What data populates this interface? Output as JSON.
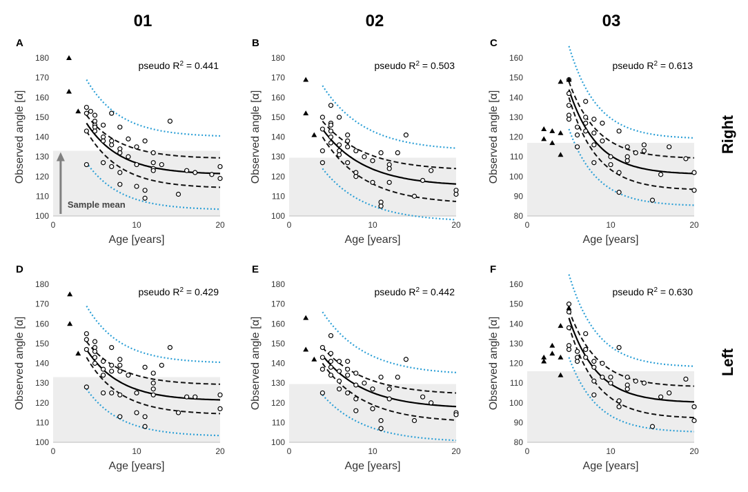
{
  "figure": {
    "column_titles": [
      "01",
      "02",
      "03"
    ],
    "row_titles": [
      "Right",
      "Left"
    ]
  },
  "chart_data": [
    {
      "type": "scatter",
      "panel_label": "A",
      "column": "01",
      "side": "Right",
      "r2_prefix": "pseudo R",
      "r2_sup": "2",
      "r2_value": " = 0.441",
      "xlabel": "Age [years]",
      "ylabel": "Observed angle [α]",
      "xlim": [
        0,
        20
      ],
      "ylim": [
        100,
        180
      ],
      "xticks": [
        0,
        10,
        20
      ],
      "yticks": [
        100,
        110,
        120,
        130,
        140,
        150,
        160,
        170,
        180
      ],
      "sample_mean": 133,
      "annotation": "Sample mean",
      "fit": {
        "asymptote": 121,
        "amplitude": 26,
        "rate": 0.25,
        "x_start": 4,
        "ci_upper_asymptote": 129,
        "ci_lower_asymptote": 114,
        "pi_upper_asymptote": 140,
        "pi_lower_asymptote": 103
      },
      "triangles": [
        [
          1.9,
          180
        ],
        [
          1.9,
          163
        ],
        [
          3,
          153
        ]
      ],
      "circles": [
        [
          4,
          155
        ],
        [
          4,
          152
        ],
        [
          4,
          143
        ],
        [
          4,
          126
        ],
        [
          4.5,
          153
        ],
        [
          5,
          151
        ],
        [
          5,
          148
        ],
        [
          5,
          146
        ],
        [
          5,
          145
        ],
        [
          5,
          143
        ],
        [
          6,
          146
        ],
        [
          6,
          140
        ],
        [
          6,
          138
        ],
        [
          6,
          127
        ],
        [
          7,
          152
        ],
        [
          7,
          138
        ],
        [
          7,
          136
        ],
        [
          7,
          125
        ],
        [
          8,
          145
        ],
        [
          8,
          134
        ],
        [
          8,
          132
        ],
        [
          8,
          122
        ],
        [
          8,
          116
        ],
        [
          9,
          139
        ],
        [
          9,
          130
        ],
        [
          10,
          135
        ],
        [
          10,
          126
        ],
        [
          10,
          115
        ],
        [
          11,
          138
        ],
        [
          11,
          113
        ],
        [
          11,
          109
        ],
        [
          12,
          132
        ],
        [
          12,
          127
        ],
        [
          12,
          124
        ],
        [
          12,
          123
        ],
        [
          13,
          126
        ],
        [
          14,
          148
        ],
        [
          15,
          111
        ],
        [
          16,
          123
        ],
        [
          17,
          122
        ],
        [
          19,
          121
        ],
        [
          20,
          125
        ],
        [
          20,
          119
        ]
      ]
    },
    {
      "type": "scatter",
      "panel_label": "B",
      "column": "02",
      "side": "Right",
      "r2_prefix": "pseudo R",
      "r2_sup": "2",
      "r2_value": " = 0.503",
      "xlabel": "Age [years]",
      "ylabel": "Observed angle [α]",
      "xlim": [
        0,
        20
      ],
      "ylim": [
        100,
        180
      ],
      "xticks": [
        0,
        10,
        20
      ],
      "yticks": [
        100,
        110,
        120,
        130,
        140,
        150,
        160,
        170,
        180
      ],
      "sample_mean": 129.5,
      "fit": {
        "asymptote": 115,
        "amplitude": 29,
        "rate": 0.2,
        "x_start": 4,
        "ci_upper_asymptote": 123,
        "ci_lower_asymptote": 106,
        "pi_upper_asymptote": 133,
        "pi_lower_asymptote": 97
      },
      "triangles": [
        [
          2,
          169
        ],
        [
          2,
          152
        ],
        [
          3,
          141
        ]
      ],
      "circles": [
        [
          4,
          150
        ],
        [
          4,
          144
        ],
        [
          4,
          133
        ],
        [
          4,
          127
        ],
        [
          5,
          156
        ],
        [
          5,
          147
        ],
        [
          5,
          146
        ],
        [
          5,
          143
        ],
        [
          5,
          140
        ],
        [
          5,
          137
        ],
        [
          6,
          150
        ],
        [
          6,
          136
        ],
        [
          6,
          133
        ],
        [
          6,
          131
        ],
        [
          7,
          141
        ],
        [
          7,
          138
        ],
        [
          7,
          135
        ],
        [
          7,
          127
        ],
        [
          8,
          133
        ],
        [
          8,
          122
        ],
        [
          8,
          120
        ],
        [
          9,
          130
        ],
        [
          10,
          128
        ],
        [
          10,
          117
        ],
        [
          11,
          132
        ],
        [
          11,
          107
        ],
        [
          11,
          105
        ],
        [
          12,
          126
        ],
        [
          12,
          124
        ],
        [
          12,
          117
        ],
        [
          13,
          132
        ],
        [
          14,
          141
        ],
        [
          15,
          110
        ],
        [
          16,
          118
        ],
        [
          17,
          123
        ],
        [
          20,
          113
        ],
        [
          20,
          111
        ]
      ]
    },
    {
      "type": "scatter",
      "panel_label": "C",
      "column": "03",
      "side": "Right",
      "r2_prefix": "pseudo R",
      "r2_sup": "2",
      "r2_value": " = 0.613",
      "xlabel": "Age [years]",
      "ylabel": "Observed angle [α]",
      "xlim": [
        0,
        20
      ],
      "ylim": [
        80,
        160
      ],
      "xticks": [
        0,
        10,
        20
      ],
      "yticks": [
        80,
        90,
        100,
        110,
        120,
        130,
        140,
        150,
        160
      ],
      "sample_mean": 117,
      "fit": {
        "asymptote": 101,
        "amplitude": 43,
        "rate": 0.3,
        "x_start": 5,
        "ci_upper_asymptote": 109,
        "ci_lower_asymptote": 93,
        "pi_upper_asymptote": 119,
        "pi_lower_asymptote": 85
      },
      "triangles": [
        [
          2,
          124
        ],
        [
          2,
          119
        ],
        [
          3,
          123
        ],
        [
          3,
          117
        ],
        [
          4,
          148
        ],
        [
          4,
          122
        ],
        [
          4,
          111
        ],
        [
          5,
          149
        ]
      ],
      "circles": [
        [
          5,
          149
        ],
        [
          5,
          142
        ],
        [
          5,
          136
        ],
        [
          5,
          131
        ],
        [
          5,
          129
        ],
        [
          6,
          125
        ],
        [
          6,
          121
        ],
        [
          6,
          115
        ],
        [
          7,
          138
        ],
        [
          7,
          130
        ],
        [
          7,
          127
        ],
        [
          7,
          123
        ],
        [
          8,
          129
        ],
        [
          8,
          122
        ],
        [
          8,
          116
        ],
        [
          8,
          107
        ],
        [
          9,
          127
        ],
        [
          9,
          118
        ],
        [
          10,
          110
        ],
        [
          10,
          106
        ],
        [
          11,
          123
        ],
        [
          11,
          102
        ],
        [
          11,
          92
        ],
        [
          12,
          115
        ],
        [
          12,
          110
        ],
        [
          12,
          108
        ],
        [
          13,
          112
        ],
        [
          14,
          116
        ],
        [
          14,
          113
        ],
        [
          15,
          88
        ],
        [
          16,
          101
        ],
        [
          17,
          115
        ],
        [
          19,
          109
        ],
        [
          20,
          102
        ],
        [
          20,
          93
        ]
      ]
    },
    {
      "type": "scatter",
      "panel_label": "D",
      "column": "01",
      "side": "Left",
      "r2_prefix": "pseudo R",
      "r2_sup": "2",
      "r2_value": " = 0.429",
      "xlabel": "Age [years]",
      "ylabel": "Observed angle [α]",
      "xlim": [
        0,
        20
      ],
      "ylim": [
        100,
        180
      ],
      "xticks": [
        0,
        10,
        20
      ],
      "yticks": [
        100,
        110,
        120,
        130,
        140,
        150,
        160,
        170,
        180
      ],
      "sample_mean": 133,
      "fit": {
        "asymptote": 121,
        "amplitude": 26,
        "rate": 0.25,
        "x_start": 4,
        "ci_upper_asymptote": 129,
        "ci_lower_asymptote": 114,
        "pi_upper_asymptote": 140,
        "pi_lower_asymptote": 103
      },
      "triangles": [
        [
          2,
          175
        ],
        [
          2,
          160
        ],
        [
          3,
          145
        ]
      ],
      "circles": [
        [
          4,
          155
        ],
        [
          4,
          152
        ],
        [
          4,
          147
        ],
        [
          4,
          128
        ],
        [
          5,
          151
        ],
        [
          5,
          148
        ],
        [
          5,
          146
        ],
        [
          5,
          143
        ],
        [
          5,
          140
        ],
        [
          6,
          141
        ],
        [
          6,
          137
        ],
        [
          6,
          134
        ],
        [
          6,
          125
        ],
        [
          7,
          148
        ],
        [
          7,
          139
        ],
        [
          7,
          136
        ],
        [
          7,
          125
        ],
        [
          8,
          142
        ],
        [
          8,
          139
        ],
        [
          8,
          136
        ],
        [
          8,
          124
        ],
        [
          8,
          113
        ],
        [
          9,
          134
        ],
        [
          10,
          125
        ],
        [
          10,
          115
        ],
        [
          11,
          138
        ],
        [
          11,
          113
        ],
        [
          11,
          108
        ],
        [
          12,
          135
        ],
        [
          12,
          130
        ],
        [
          12,
          127
        ],
        [
          12,
          124
        ],
        [
          13,
          139
        ],
        [
          14,
          148
        ],
        [
          15,
          115
        ],
        [
          16,
          123
        ],
        [
          17,
          123
        ],
        [
          20,
          124
        ],
        [
          20,
          117
        ]
      ]
    },
    {
      "type": "scatter",
      "panel_label": "E",
      "column": "02",
      "side": "Left",
      "r2_prefix": "pseudo R",
      "r2_sup": "2",
      "r2_value": " = 0.442",
      "xlabel": "Age [years]",
      "ylabel": "Observed angle [α]",
      "xlim": [
        0,
        20
      ],
      "ylim": [
        100,
        180
      ],
      "xticks": [
        0,
        10,
        20
      ],
      "yticks": [
        100,
        110,
        120,
        130,
        140,
        150,
        160,
        170,
        180
      ],
      "sample_mean": 129.5,
      "fit": {
        "asymptote": 117,
        "amplitude": 27,
        "rate": 0.2,
        "x_start": 4,
        "ci_upper_asymptote": 124,
        "ci_lower_asymptote": 110,
        "pi_upper_asymptote": 134,
        "pi_lower_asymptote": 100
      },
      "triangles": [
        [
          2,
          163
        ],
        [
          2,
          147
        ],
        [
          3,
          142
        ]
      ],
      "circles": [
        [
          4,
          148
        ],
        [
          4,
          143
        ],
        [
          4,
          137
        ],
        [
          4,
          125
        ],
        [
          5,
          154
        ],
        [
          5,
          145
        ],
        [
          5,
          141
        ],
        [
          5,
          138
        ],
        [
          5,
          134
        ],
        [
          6,
          141
        ],
        [
          6,
          136
        ],
        [
          6,
          131
        ],
        [
          6,
          127
        ],
        [
          7,
          141
        ],
        [
          7,
          137
        ],
        [
          7,
          134
        ],
        [
          7,
          125
        ],
        [
          8,
          135
        ],
        [
          8,
          129
        ],
        [
          8,
          122
        ],
        [
          8,
          116
        ],
        [
          9,
          130
        ],
        [
          10,
          127
        ],
        [
          10,
          117
        ],
        [
          11,
          133
        ],
        [
          11,
          111
        ],
        [
          11,
          107
        ],
        [
          12,
          127
        ],
        [
          12,
          122
        ],
        [
          13,
          133
        ],
        [
          14,
          142
        ],
        [
          15,
          111
        ],
        [
          16,
          123
        ],
        [
          17,
          120
        ],
        [
          20,
          115
        ],
        [
          20,
          114
        ]
      ]
    },
    {
      "type": "scatter",
      "panel_label": "F",
      "column": "03",
      "side": "Left",
      "r2_prefix": "pseudo R",
      "r2_sup": "2",
      "r2_value": " = 0.630",
      "xlabel": "Age [years]",
      "ylabel": "Observed angle [α]",
      "xlim": [
        0,
        20
      ],
      "ylim": [
        80,
        160
      ],
      "xticks": [
        0,
        10,
        20
      ],
      "yticks": [
        80,
        90,
        100,
        110,
        120,
        130,
        140,
        150,
        160
      ],
      "sample_mean": 116,
      "fit": {
        "asymptote": 100,
        "amplitude": 43,
        "rate": 0.3,
        "x_start": 5,
        "ci_upper_asymptote": 108,
        "ci_lower_asymptote": 92,
        "pi_upper_asymptote": 118,
        "pi_lower_asymptote": 85
      },
      "triangles": [
        [
          2,
          123
        ],
        [
          2,
          121
        ],
        [
          3,
          129
        ],
        [
          3,
          125
        ],
        [
          4,
          139
        ],
        [
          4,
          123
        ],
        [
          4,
          114
        ],
        [
          5,
          148
        ]
      ],
      "circles": [
        [
          5,
          150
        ],
        [
          5,
          146
        ],
        [
          5,
          138
        ],
        [
          5,
          129
        ],
        [
          5,
          127
        ],
        [
          6,
          126
        ],
        [
          6,
          123
        ],
        [
          6,
          121
        ],
        [
          7,
          135
        ],
        [
          7,
          127
        ],
        [
          7,
          123
        ],
        [
          8,
          121
        ],
        [
          8,
          118
        ],
        [
          8,
          111
        ],
        [
          8,
          104
        ],
        [
          9,
          120
        ],
        [
          9,
          113
        ],
        [
          10,
          113
        ],
        [
          10,
          110
        ],
        [
          11,
          128
        ],
        [
          11,
          101
        ],
        [
          11,
          98
        ],
        [
          12,
          113
        ],
        [
          12,
          109
        ],
        [
          12,
          107
        ],
        [
          13,
          111
        ],
        [
          14,
          110
        ],
        [
          15,
          88
        ],
        [
          16,
          103
        ],
        [
          17,
          105
        ],
        [
          19,
          112
        ],
        [
          20,
          98
        ],
        [
          20,
          91
        ]
      ]
    }
  ]
}
